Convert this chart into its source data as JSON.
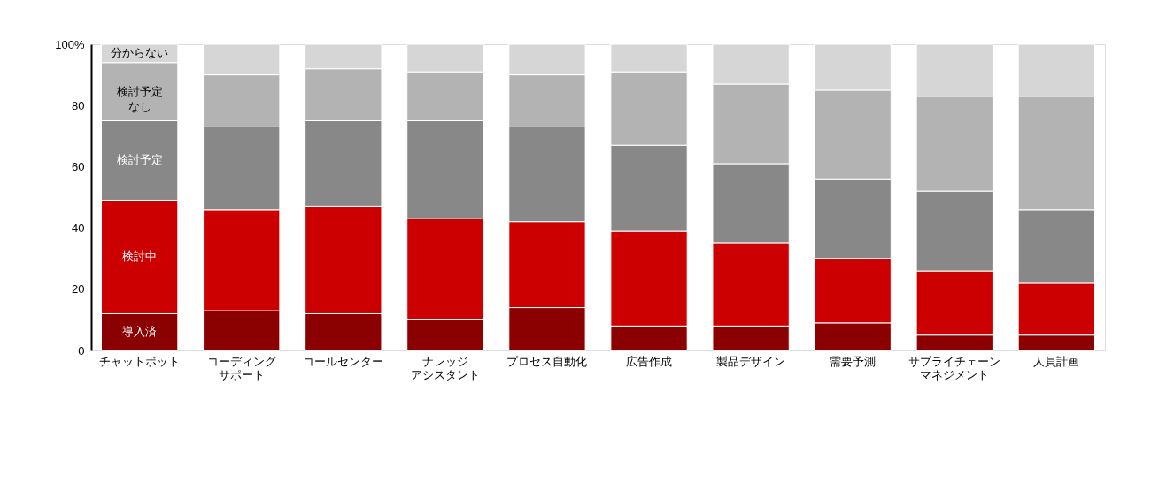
{
  "chart_data": {
    "type": "bar",
    "stacked": true,
    "categories": [
      "チャットボット",
      "コーディングサポート",
      "コールセンター",
      "ナレッジアシスタント",
      "プロセス自動化",
      "広告作成",
      "製品デザイン",
      "需要予測",
      "サプライチェーンマネジメント",
      "人員計画"
    ],
    "series": [
      {
        "name": "導入済",
        "color": "#8b0000",
        "values": [
          12,
          13,
          12,
          10,
          14,
          8,
          8,
          9,
          5,
          5
        ]
      },
      {
        "name": "検討中",
        "color": "#cc0000",
        "values": [
          37,
          33,
          35,
          33,
          28,
          31,
          27,
          21,
          21,
          17
        ]
      },
      {
        "name": "検討予定",
        "color": "#888888",
        "values": [
          26,
          27,
          28,
          32,
          31,
          28,
          26,
          26,
          26,
          24
        ]
      },
      {
        "name": "検討予定なし",
        "color": "#b3b3b3",
        "values": [
          19,
          17,
          17,
          16,
          17,
          24,
          26,
          29,
          31,
          37
        ]
      },
      {
        "name": "分からない",
        "color": "#d6d6d6",
        "values": [
          6,
          10,
          8,
          9,
          10,
          9,
          13,
          15,
          17,
          17
        ]
      }
    ],
    "ylim": [
      0,
      100
    ],
    "yticks": [
      0,
      20,
      40,
      60,
      80,
      {
        "value": 100,
        "label": "100%"
      }
    ],
    "grid": false,
    "legend": false
  }
}
